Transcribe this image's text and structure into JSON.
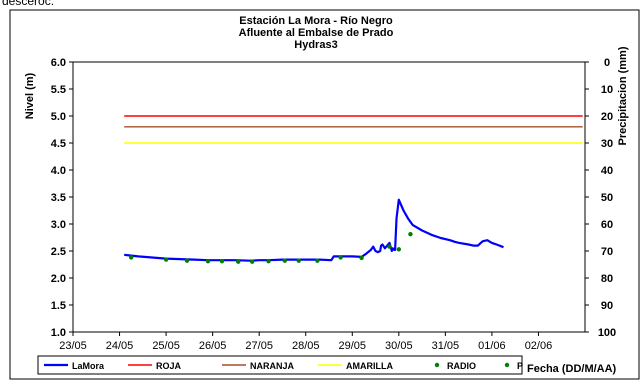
{
  "top_fragment": "desceroc.",
  "chart_data": {
    "type": "line",
    "title": [
      "Estación La Mora - Río Negro",
      "Afluente al Embalse de Prado",
      "Hydras3"
    ],
    "ylabel": "Nivel (m)",
    "y2label": "Precipitacion (mm)",
    "xlabel": "Fecha (DD/M/AA)",
    "ylim": [
      1.0,
      6.0
    ],
    "y2lim": [
      0,
      100
    ],
    "y2_inverted": true,
    "y_ticks": [
      "1.0",
      "1.5",
      "2.0",
      "2.5",
      "3.0",
      "3.5",
      "4.0",
      "4.5",
      "5.0",
      "5.5",
      "6.0"
    ],
    "y2_ticks": [
      "0",
      "10",
      "20",
      "30",
      "40",
      "50",
      "60",
      "70",
      "80",
      "90",
      "100"
    ],
    "x_range_days": [
      "23/05",
      "02/06"
    ],
    "x_ticks": [
      "23/05",
      "24/05",
      "25/05",
      "26/05",
      "27/05",
      "28/05",
      "29/05",
      "30/05",
      "31/05",
      "01/06",
      "02/06"
    ],
    "grid": false,
    "legend_position": "bottom",
    "series": [
      {
        "name": "LaMora",
        "color": "#0000ff",
        "x_day": [
          24.1,
          24.4,
          24.7,
          25.0,
          25.3,
          25.6,
          25.9,
          26.2,
          26.5,
          26.8,
          27.0,
          27.2,
          27.5,
          27.8,
          28.0,
          28.3,
          28.55,
          28.6,
          28.8,
          29.0,
          29.2,
          29.3,
          29.4,
          29.45,
          29.5,
          29.55,
          29.6,
          29.62,
          29.65,
          29.7,
          29.75,
          29.8,
          29.85,
          29.87,
          29.9,
          29.92,
          29.95,
          30.0,
          30.1,
          30.2,
          30.3,
          30.5,
          30.7,
          30.9,
          31.1,
          31.2,
          31.3,
          31.5,
          31.6,
          31.7,
          31.8,
          31.9,
          32.0,
          32.1,
          32.25
        ],
        "y": [
          2.43,
          2.4,
          2.38,
          2.36,
          2.35,
          2.34,
          2.33,
          2.33,
          2.33,
          2.32,
          2.33,
          2.33,
          2.34,
          2.34,
          2.34,
          2.34,
          2.33,
          2.4,
          2.4,
          2.4,
          2.39,
          2.45,
          2.52,
          2.58,
          2.5,
          2.48,
          2.5,
          2.6,
          2.62,
          2.55,
          2.6,
          2.65,
          2.5,
          2.55,
          2.52,
          2.52,
          3.1,
          3.45,
          3.25,
          3.1,
          2.98,
          2.88,
          2.8,
          2.74,
          2.7,
          2.67,
          2.65,
          2.62,
          2.6,
          2.6,
          2.68,
          2.7,
          2.65,
          2.62,
          2.57
        ]
      },
      {
        "name": "ROJA",
        "color": "#ff0000",
        "x_day": [
          24.1,
          33.95
        ],
        "y": [
          5.0,
          5.0
        ]
      },
      {
        "name": "NARANJA",
        "color": "#a0522d",
        "x_day": [
          24.1,
          33.95
        ],
        "y": [
          4.8,
          4.8
        ]
      },
      {
        "name": "AMARILLA",
        "color": "#ffff00",
        "x_day": [
          24.1,
          33.95
        ],
        "y": [
          4.5,
          4.5
        ]
      },
      {
        "name": "RADIO",
        "color": "#008000",
        "marker": "dot",
        "x_day": [
          24.25,
          25.0,
          25.45,
          25.9,
          26.2,
          26.55,
          26.85,
          27.2,
          27.55,
          27.85,
          28.25,
          28.75,
          29.2,
          29.8,
          30.0,
          30.25
        ],
        "y": [
          2.4,
          2.36,
          2.34,
          2.33,
          2.33,
          2.32,
          2.32,
          2.33,
          2.34,
          2.34,
          2.34,
          2.4,
          2.39,
          2.6,
          2.55,
          2.83
        ]
      },
      {
        "name": "P",
        "color": "#008000",
        "marker": "dot",
        "x_day": [],
        "y": []
      }
    ]
  }
}
